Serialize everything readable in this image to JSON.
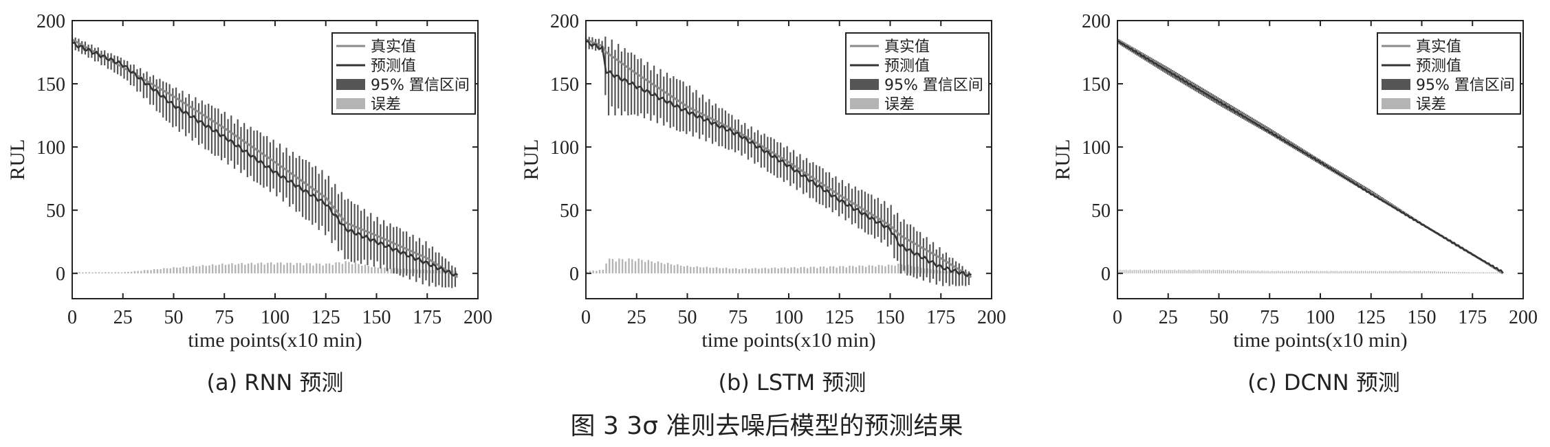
{
  "figure_title": "图 3   3σ 准则去噪后模型的预测结果",
  "colors": {
    "true_line": "#8a8a8a",
    "pred_line": "#333333",
    "ci_band": "#555555",
    "error": "#b4b4b4",
    "axes": "#222222"
  },
  "chart_data": [
    {
      "type": "line",
      "caption": "(a) RNN 预测",
      "xlabel": "time points(x10 min)",
      "ylabel": "RUL",
      "xlim": [
        0,
        200
      ],
      "ylim": [
        -20,
        200
      ],
      "xticks": [
        "0",
        "25",
        "50",
        "75",
        "100",
        "125",
        "150",
        "175",
        "200"
      ],
      "yticks": [
        "0",
        "50",
        "100",
        "150",
        "200"
      ],
      "grid": false,
      "legend_position": "top-right",
      "legend": [
        "真实值",
        "预测值",
        "95% 置信区间",
        "误差"
      ],
      "x": [
        0,
        25,
        50,
        75,
        100,
        125,
        135,
        150,
        175,
        190
      ],
      "series": [
        {
          "name": "真实值",
          "values": [
            185,
            163,
            140,
            115,
            88,
            60,
            40,
            30,
            12,
            -3
          ]
        },
        {
          "name": "预测值",
          "values": [
            182,
            165,
            133,
            108,
            80,
            55,
            35,
            25,
            8,
            -2
          ]
        },
        {
          "name": "95% 置信区间",
          "lower": [
            178,
            155,
            115,
            88,
            62,
            30,
            10,
            5,
            -10,
            -12
          ],
          "upper": [
            188,
            170,
            148,
            128,
            105,
            80,
            60,
            45,
            25,
            3
          ]
        },
        {
          "name": "误差",
          "values": [
            1,
            1,
            5,
            8,
            9,
            8,
            10,
            5,
            3,
            2
          ]
        }
      ]
    },
    {
      "type": "line",
      "caption": "(b) LSTM 预测",
      "xlabel": "time points(x10 min)",
      "ylabel": "RUL",
      "xlim": [
        0,
        200
      ],
      "ylim": [
        -20,
        200
      ],
      "xticks": [
        "0",
        "25",
        "50",
        "75",
        "100",
        "125",
        "150",
        "175",
        "200"
      ],
      "yticks": [
        "0",
        "50",
        "100",
        "150",
        "200"
      ],
      "grid": false,
      "legend_position": "top-right",
      "legend": [
        "真实值",
        "预测值",
        "95% 置信区间",
        "误差"
      ],
      "x": [
        0,
        8,
        10,
        25,
        50,
        75,
        100,
        125,
        150,
        155,
        175,
        190
      ],
      "series": [
        {
          "name": "真实值",
          "values": [
            185,
            180,
            175,
            158,
            132,
            112,
            88,
            62,
            38,
            30,
            12,
            -3
          ]
        },
        {
          "name": "预测值",
          "values": [
            183,
            178,
            160,
            148,
            128,
            110,
            85,
            58,
            35,
            22,
            5,
            -2
          ]
        },
        {
          "name": "95% 置信区间",
          "lower": [
            178,
            175,
            125,
            125,
            110,
            95,
            70,
            45,
            20,
            0,
            -10,
            -10
          ],
          "upper": [
            188,
            185,
            188,
            172,
            150,
            122,
            100,
            75,
            55,
            45,
            20,
            0
          ]
        },
        {
          "name": "误差",
          "values": [
            2,
            3,
            12,
            12,
            6,
            4,
            5,
            6,
            7,
            8,
            2,
            1
          ]
        }
      ]
    },
    {
      "type": "line",
      "caption": "(c) DCNN 预测",
      "xlabel": "time points(x10 min)",
      "ylabel": "RUL",
      "xlim": [
        0,
        200
      ],
      "ylim": [
        -20,
        200
      ],
      "xticks": [
        "0",
        "25",
        "50",
        "75",
        "100",
        "125",
        "150",
        "175",
        "200"
      ],
      "yticks": [
        "0",
        "50",
        "100",
        "150",
        "200"
      ],
      "grid": false,
      "legend_position": "top-right",
      "legend": [
        "真实值",
        "预测值",
        "95% 置信区间",
        "误差"
      ],
      "x": [
        0,
        25,
        50,
        75,
        100,
        125,
        150,
        175,
        190
      ],
      "series": [
        {
          "name": "真实值",
          "values": [
            185,
            161,
            137,
            113,
            88,
            64,
            39,
            15,
            0
          ]
        },
        {
          "name": "预测值",
          "values": [
            184,
            160,
            136,
            112,
            88,
            63,
            39,
            15,
            1
          ]
        },
        {
          "name": "95% 置信区间",
          "lower": [
            182,
            157,
            133,
            110,
            86,
            62,
            38,
            14,
            0
          ],
          "upper": [
            186,
            163,
            139,
            115,
            90,
            66,
            40,
            16,
            1
          ]
        },
        {
          "name": "误差",
          "values": [
            3,
            3,
            3,
            2,
            2,
            2,
            2,
            1,
            1
          ]
        }
      ]
    }
  ]
}
